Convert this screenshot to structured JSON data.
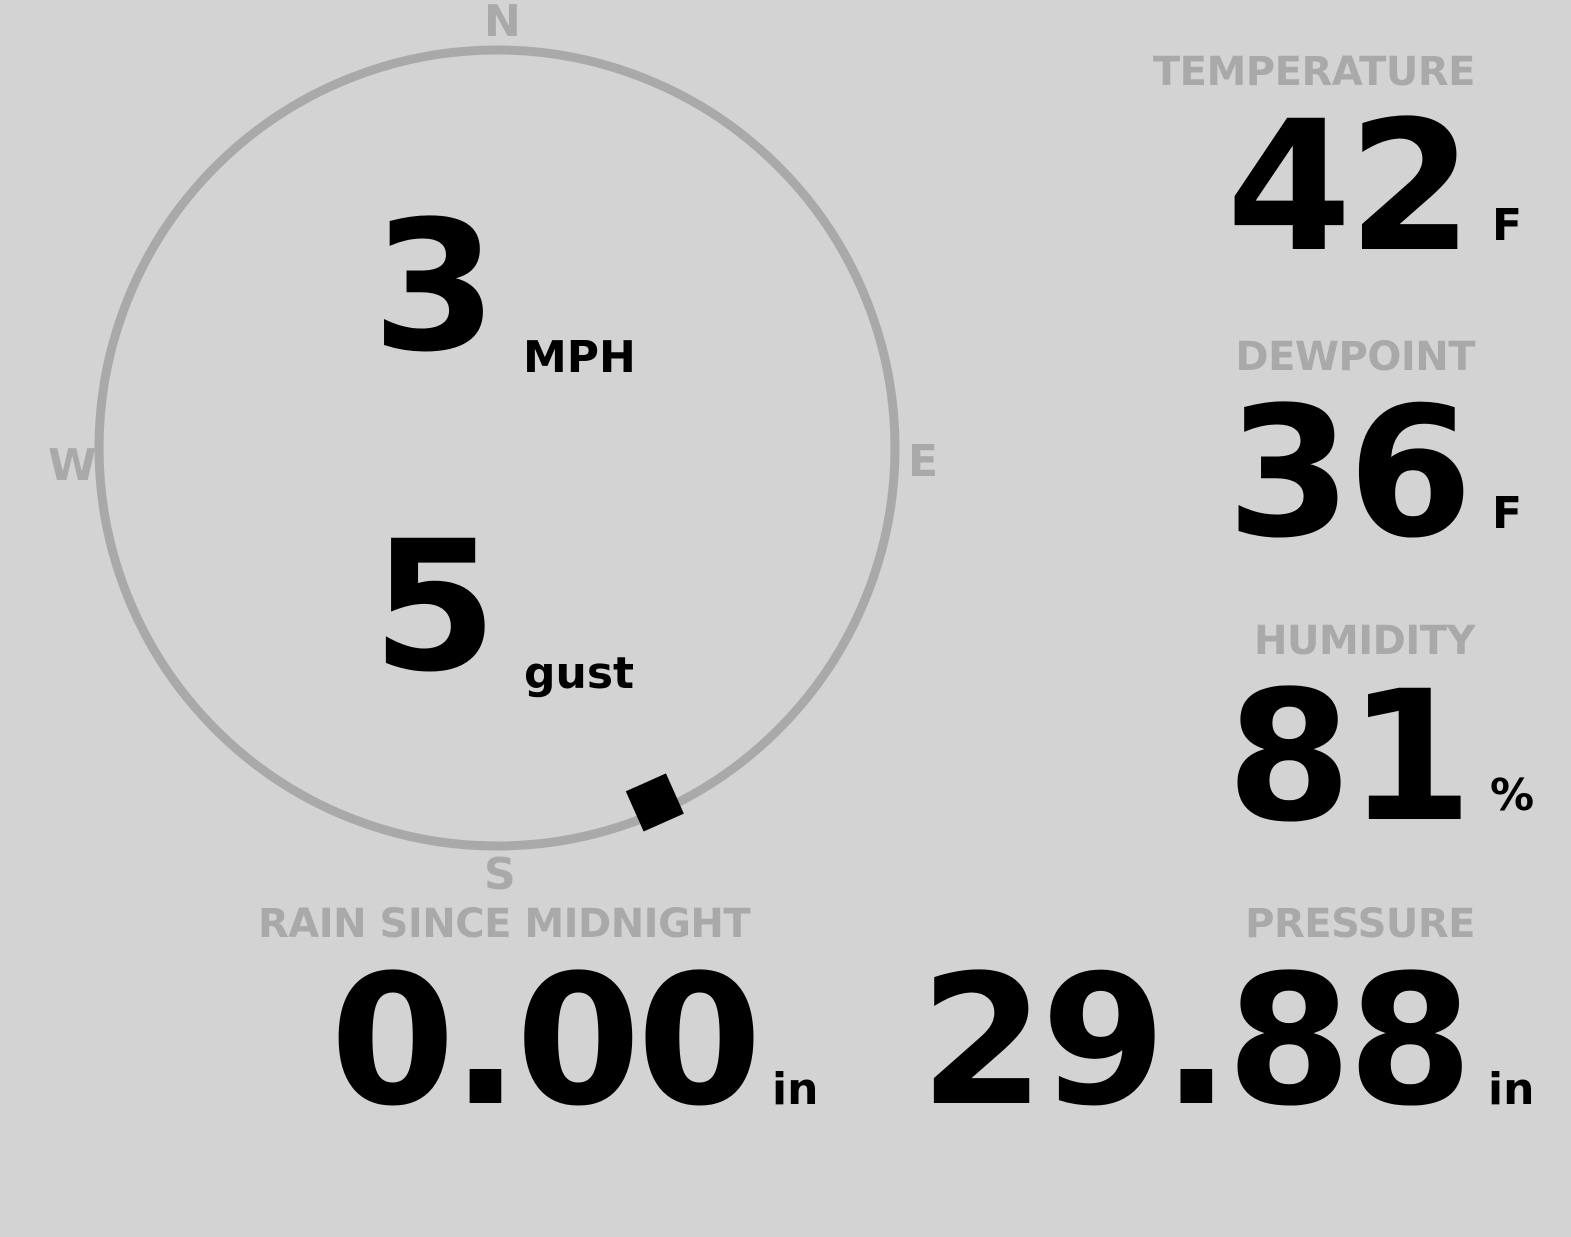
{
  "compass": {
    "north": "N",
    "south": "S",
    "east": "E",
    "west": "W",
    "wind_direction_deg": 156,
    "ring_color": "#a9a9a9",
    "marker_color": "#000000"
  },
  "wind": {
    "speed": "3",
    "speed_unit": "MPH",
    "gust": "5",
    "gust_unit": "gust"
  },
  "temperature": {
    "label": "TEMPERATURE",
    "value": "42",
    "unit": "F"
  },
  "dewpoint": {
    "label": "DEWPOINT",
    "value": "36",
    "unit": "F"
  },
  "humidity": {
    "label": "HUMIDITY",
    "value": "81",
    "unit": "%"
  },
  "rain": {
    "label": "RAIN SINCE MIDNIGHT",
    "value": "0.00",
    "unit": "in"
  },
  "pressure": {
    "label": "PRESSURE",
    "value": "29.88",
    "unit": "in"
  }
}
